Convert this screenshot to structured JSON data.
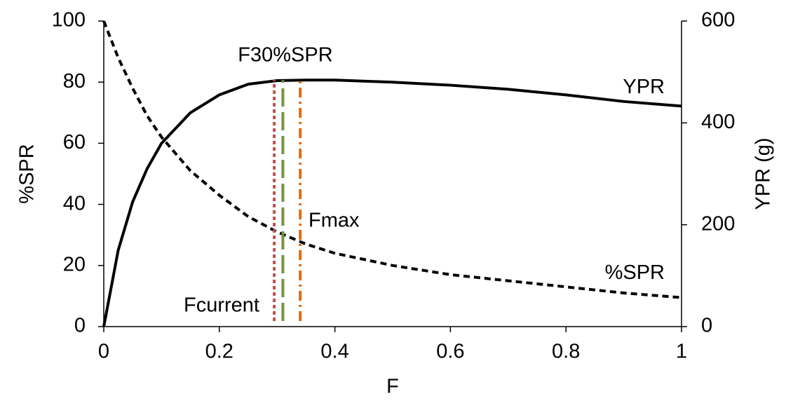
{
  "chart_data": {
    "type": "line",
    "x_label": "F",
    "y_label": "%SPR",
    "y2_label": "YPR (g)",
    "x": [
      0,
      0.025,
      0.05,
      0.075,
      0.1,
      0.15,
      0.2,
      0.25,
      0.3,
      0.35,
      0.4,
      0.5,
      0.6,
      0.7,
      0.8,
      0.9,
      1.0
    ],
    "series": [
      {
        "name": "%SPR",
        "color": "#000000",
        "linestyle": "dashed",
        "axis": "y",
        "values": [
          100,
          88,
          78,
          69,
          62,
          51,
          43,
          36,
          31,
          27,
          24,
          20,
          17,
          15,
          13,
          11,
          9.5
        ]
      },
      {
        "name": "YPR",
        "color": "#000000",
        "linestyle": "solid",
        "axis": "y2",
        "values": [
          0,
          150,
          245,
          310,
          360,
          420,
          455,
          476,
          483,
          484,
          484,
          480,
          474,
          466,
          455,
          442,
          433
        ]
      }
    ],
    "vlines": [
      {
        "name": "Fcurrent",
        "x": 0.295,
        "color": "#c0504d",
        "linestyle": "dotted"
      },
      {
        "name": "F30%SPR",
        "x": 0.31,
        "color": "#77933c",
        "linestyle": "longdash"
      },
      {
        "name": "Fmax",
        "x": 0.34,
        "color": "#e46c0a",
        "linestyle": "dashdot"
      }
    ],
    "xlim": [
      0,
      1
    ],
    "xticks": [
      0,
      0.2,
      0.4,
      0.6,
      0.8,
      1
    ],
    "ylim": [
      0,
      100
    ],
    "yticks": [
      0,
      20,
      40,
      60,
      80,
      100
    ],
    "y2lim": [
      0,
      600
    ],
    "y2ticks": [
      0,
      200,
      400,
      600
    ],
    "grid": false
  }
}
